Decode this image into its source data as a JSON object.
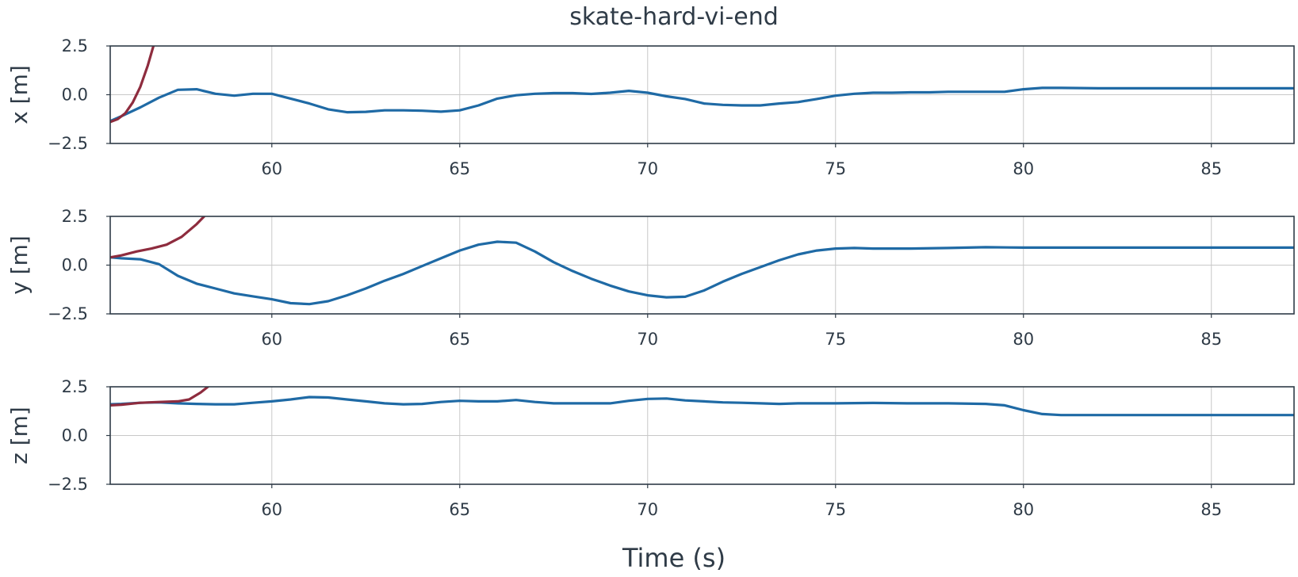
{
  "chart_data": {
    "type": "line",
    "title": "skate-hard-vi-end",
    "xlabel": "Time (s)",
    "xlim": [
      55.7,
      87.2
    ],
    "xticks": [
      60,
      65,
      70,
      75,
      80,
      85
    ],
    "xtick_labels": [
      "60",
      "65",
      "70",
      "75",
      "80",
      "85"
    ],
    "grid": true,
    "colors": {
      "blue": "#1f6aa5",
      "red": "#8e2c3e",
      "axis": "#2f3b47",
      "grid": "#c8c8c8"
    },
    "subplots": [
      {
        "id": "x",
        "ylabel": "x [m]",
        "ylim": [
          -2.5,
          2.5
        ],
        "yticks": [
          2.5,
          0.0,
          -2.5
        ],
        "ytick_labels": [
          "2.5",
          "0.0",
          "−2.5"
        ],
        "series": [
          {
            "color": "#1f6aa5",
            "x": [
              55.7,
              56.0,
              56.5,
              57.0,
              57.5,
              58.0,
              58.5,
              59.0,
              59.5,
              60.0,
              60.5,
              61.0,
              61.5,
              62.0,
              62.5,
              63.0,
              63.5,
              64.0,
              64.5,
              65.0,
              65.5,
              66.0,
              66.5,
              67.0,
              67.5,
              68.0,
              68.5,
              69.0,
              69.5,
              70.0,
              70.5,
              71.0,
              71.5,
              72.0,
              72.5,
              73.0,
              73.5,
              74.0,
              74.5,
              75.0,
              75.5,
              76.0,
              76.5,
              77.0,
              77.5,
              78.0,
              78.5,
              79.0,
              79.5,
              80.0,
              80.5,
              81.0,
              82.0,
              84.0,
              86.0,
              87.2
            ],
            "y": [
              -1.35,
              -1.1,
              -0.65,
              -0.15,
              0.25,
              0.28,
              0.05,
              -0.05,
              0.05,
              0.05,
              -0.2,
              -0.45,
              -0.75,
              -0.9,
              -0.88,
              -0.8,
              -0.8,
              -0.82,
              -0.87,
              -0.8,
              -0.55,
              -0.2,
              -0.03,
              0.05,
              0.08,
              0.08,
              0.04,
              0.1,
              0.2,
              0.1,
              -0.08,
              -0.22,
              -0.45,
              -0.52,
              -0.55,
              -0.55,
              -0.45,
              -0.38,
              -0.22,
              -0.05,
              0.05,
              0.1,
              0.1,
              0.12,
              0.12,
              0.15,
              0.15,
              0.15,
              0.15,
              0.28,
              0.35,
              0.35,
              0.33,
              0.33,
              0.33,
              0.33
            ]
          },
          {
            "color": "#8e2c3e",
            "x": [
              55.7,
              55.9,
              56.1,
              56.3,
              56.5,
              56.7,
              56.85
            ],
            "y": [
              -1.4,
              -1.25,
              -0.95,
              -0.4,
              0.4,
              1.5,
              2.5
            ]
          }
        ]
      },
      {
        "id": "y",
        "ylabel": "y [m]",
        "ylim": [
          -2.5,
          2.5
        ],
        "yticks": [
          2.5,
          0.0,
          -2.5
        ],
        "ytick_labels": [
          "2.5",
          "0.0",
          "−2.5"
        ],
        "series": [
          {
            "color": "#1f6aa5",
            "x": [
              55.7,
              56.0,
              56.5,
              57.0,
              57.5,
              58.0,
              58.5,
              59.0,
              59.5,
              60.0,
              60.5,
              61.0,
              61.5,
              62.0,
              62.5,
              63.0,
              63.5,
              64.0,
              64.5,
              65.0,
              65.5,
              66.0,
              66.5,
              67.0,
              67.5,
              68.0,
              68.5,
              69.0,
              69.5,
              70.0,
              70.5,
              71.0,
              71.5,
              72.0,
              72.5,
              73.0,
              73.5,
              74.0,
              74.5,
              75.0,
              75.5,
              76.0,
              77.0,
              78.0,
              79.0,
              80.0,
              81.0,
              82.0,
              84.0,
              86.0,
              87.2
            ],
            "y": [
              0.4,
              0.35,
              0.3,
              0.05,
              -0.55,
              -0.95,
              -1.2,
              -1.45,
              -1.6,
              -1.75,
              -1.95,
              -2.0,
              -1.85,
              -1.55,
              -1.2,
              -0.8,
              -0.45,
              -0.05,
              0.35,
              0.75,
              1.05,
              1.2,
              1.15,
              0.7,
              0.15,
              -0.3,
              -0.7,
              -1.05,
              -1.35,
              -1.55,
              -1.65,
              -1.62,
              -1.3,
              -0.85,
              -0.45,
              -0.1,
              0.25,
              0.55,
              0.75,
              0.85,
              0.88,
              0.85,
              0.85,
              0.88,
              0.92,
              0.9,
              0.9,
              0.9,
              0.9,
              0.9,
              0.9
            ]
          },
          {
            "color": "#8e2c3e",
            "x": [
              55.7,
              56.0,
              56.4,
              56.8,
              57.2,
              57.6,
              58.0,
              58.2
            ],
            "y": [
              0.4,
              0.5,
              0.7,
              0.85,
              1.05,
              1.45,
              2.1,
              2.5
            ]
          }
        ]
      },
      {
        "id": "z",
        "ylabel": "z [m]",
        "ylim": [
          -2.5,
          2.5
        ],
        "yticks": [
          2.5,
          0.0,
          -2.5
        ],
        "ytick_labels": [
          "2.5",
          "0.0",
          "−2.5"
        ],
        "series": [
          {
            "color": "#1f6aa5",
            "x": [
              55.7,
              56.0,
              56.5,
              57.0,
              57.5,
              58.0,
              58.5,
              59.0,
              59.5,
              60.0,
              60.5,
              61.0,
              61.5,
              62.0,
              62.5,
              63.0,
              63.5,
              64.0,
              64.5,
              65.0,
              65.5,
              66.0,
              66.5,
              67.0,
              67.5,
              68.0,
              68.5,
              69.0,
              69.5,
              70.0,
              70.5,
              71.0,
              71.5,
              72.0,
              72.5,
              73.0,
              73.5,
              74.0,
              74.5,
              75.0,
              76.0,
              77.0,
              78.0,
              79.0,
              79.5,
              80.0,
              80.5,
              81.0,
              82.0,
              84.0,
              86.0,
              87.2
            ],
            "y": [
              1.6,
              1.62,
              1.68,
              1.7,
              1.65,
              1.62,
              1.6,
              1.6,
              1.68,
              1.75,
              1.85,
              1.97,
              1.95,
              1.85,
              1.75,
              1.65,
              1.6,
              1.62,
              1.72,
              1.78,
              1.75,
              1.75,
              1.82,
              1.72,
              1.65,
              1.65,
              1.65,
              1.65,
              1.78,
              1.88,
              1.9,
              1.8,
              1.75,
              1.7,
              1.68,
              1.65,
              1.62,
              1.65,
              1.65,
              1.65,
              1.67,
              1.65,
              1.65,
              1.62,
              1.55,
              1.3,
              1.1,
              1.05,
              1.05,
              1.05,
              1.05,
              1.05
            ]
          },
          {
            "color": "#8e2c3e",
            "x": [
              55.7,
              56.0,
              56.5,
              57.0,
              57.5,
              57.8,
              58.1,
              58.3
            ],
            "y": [
              1.55,
              1.58,
              1.68,
              1.72,
              1.75,
              1.85,
              2.2,
              2.5
            ]
          }
        ]
      }
    ]
  }
}
